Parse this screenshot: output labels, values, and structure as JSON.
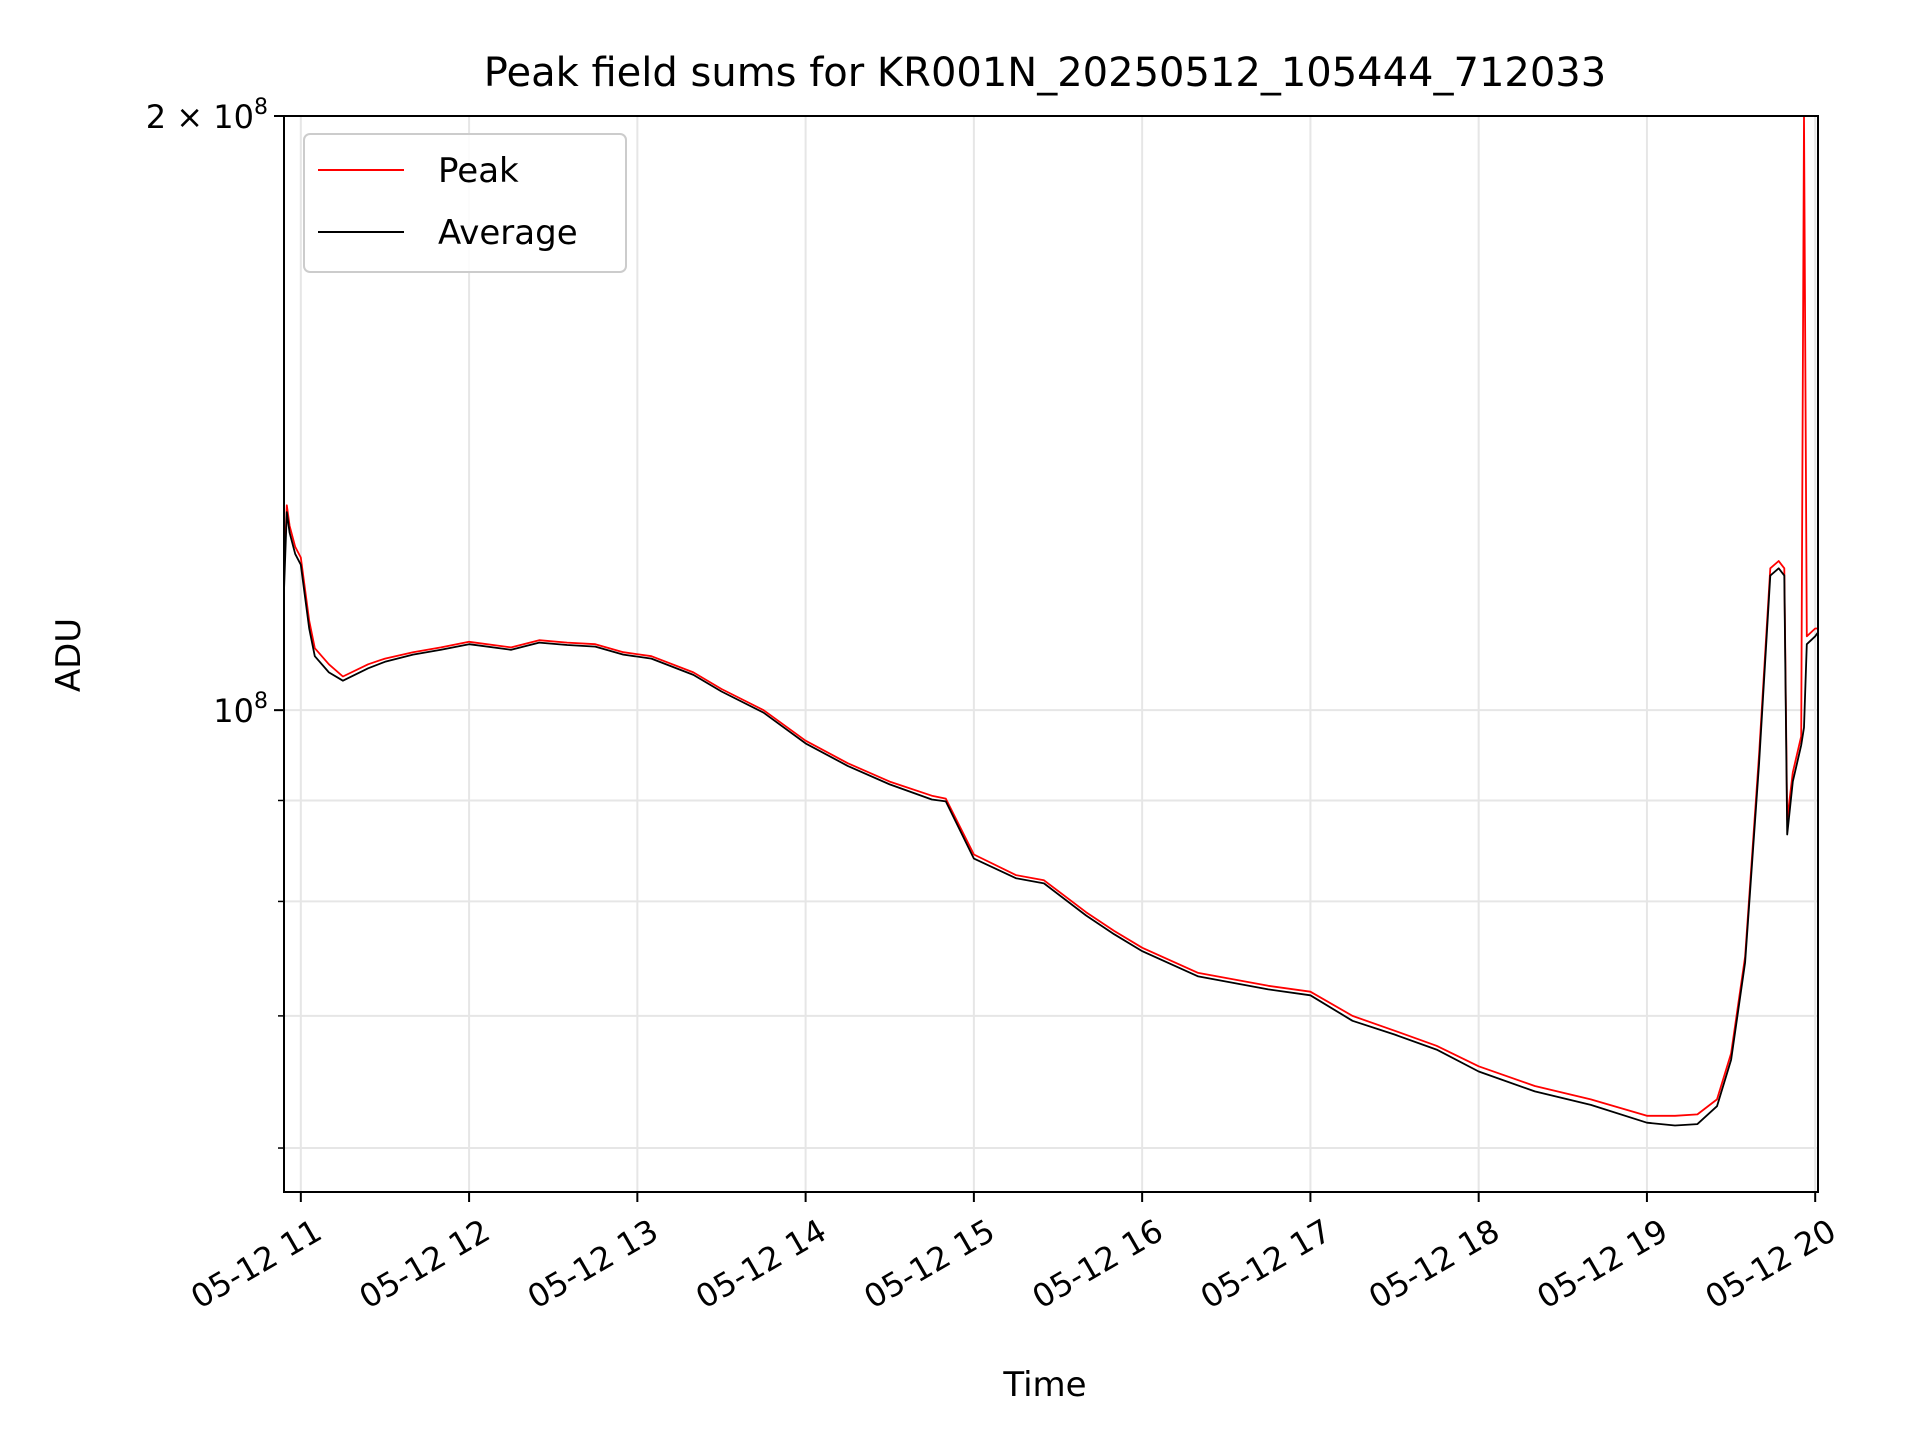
{
  "chart_data": {
    "type": "line",
    "title": "Peak field sums for KR001N_20250512_105444_712033",
    "xlabel": "Time",
    "ylabel": "ADU",
    "x_scale": "time",
    "y_scale": "log",
    "xlim": [
      "2025-05-12 10:54",
      "2025-05-12 20:01"
    ],
    "ylim": [
      57000000,
      200000000
    ],
    "grid": true,
    "legend_position": "upper-left",
    "x_tick_labels": [
      "05-12 11",
      "05-12 12",
      "05-12 13",
      "05-12 14",
      "05-12 15",
      "05-12 16",
      "05-12 17",
      "05-12 18",
      "05-12 19",
      "05-12 20"
    ],
    "y_tick_labels": [
      {
        "value": 100000000,
        "base": "10",
        "exp": "8",
        "prefix": ""
      },
      {
        "value": 200000000,
        "base": "10",
        "exp": "8",
        "prefix": "2 × "
      }
    ],
    "y_minor_ticks": [
      60000000,
      70000000,
      80000000,
      90000000
    ],
    "colors": {
      "peak": "#ff0000",
      "average": "#000000",
      "grid": "#e6e6e6"
    },
    "series": [
      {
        "name": "Peak",
        "color": "#ff0000",
        "x": [
          "2025-05-12 10:54",
          "2025-05-12 10:55",
          "2025-05-12 10:56",
          "2025-05-12 10:58",
          "2025-05-12 11:00",
          "2025-05-12 11:03",
          "2025-05-12 11:05",
          "2025-05-12 11:10",
          "2025-05-12 11:15",
          "2025-05-12 11:24",
          "2025-05-12 11:30",
          "2025-05-12 11:40",
          "2025-05-12 11:50",
          "2025-05-12 12:00",
          "2025-05-12 12:15",
          "2025-05-12 12:25",
          "2025-05-12 12:35",
          "2025-05-12 12:45",
          "2025-05-12 12:55",
          "2025-05-12 13:05",
          "2025-05-12 13:20",
          "2025-05-12 13:30",
          "2025-05-12 13:45",
          "2025-05-12 14:00",
          "2025-05-12 14:15",
          "2025-05-12 14:30",
          "2025-05-12 14:45",
          "2025-05-12 14:50",
          "2025-05-12 15:00",
          "2025-05-12 15:15",
          "2025-05-12 15:25",
          "2025-05-12 15:40",
          "2025-05-12 15:50",
          "2025-05-12 16:00",
          "2025-05-12 16:20",
          "2025-05-12 16:45",
          "2025-05-12 17:00",
          "2025-05-12 17:15",
          "2025-05-12 17:30",
          "2025-05-12 17:45",
          "2025-05-12 18:00",
          "2025-05-12 18:20",
          "2025-05-12 18:40",
          "2025-05-12 19:00",
          "2025-05-12 19:10",
          "2025-05-12 19:18",
          "2025-05-12 19:25",
          "2025-05-12 19:30",
          "2025-05-12 19:35",
          "2025-05-12 19:40",
          "2025-05-12 19:44",
          "2025-05-12 19:47",
          "2025-05-12 19:49",
          "2025-05-12 19:50",
          "2025-05-12 19:52",
          "2025-05-12 19:55",
          "2025-05-12 19:56",
          "2025-05-12 19:57",
          "2025-05-12 20:00",
          "2025-05-12 20:01"
        ],
        "values": [
          117000000,
          127000000,
          124000000,
          121000000,
          119500000,
          111000000,
          107500000,
          105500000,
          104000000,
          105500000,
          106200000,
          107000000,
          107600000,
          108300000,
          107600000,
          108500000,
          108200000,
          108000000,
          107000000,
          106500000,
          104500000,
          102500000,
          100000000,
          96500000,
          94000000,
          92000000,
          90500000,
          90200000,
          84500000,
          82500000,
          82000000,
          79000000,
          77300000,
          75800000,
          73600000,
          72500000,
          72000000,
          70000000,
          68800000,
          67600000,
          66000000,
          64500000,
          63500000,
          62300000,
          62300000,
          62400000,
          63500000,
          67000000,
          75000000,
          95000000,
          118000000,
          119000000,
          118000000,
          88000000,
          93000000,
          97000000,
          200000000,
          109000000,
          110000000,
          110000000
        ]
      },
      {
        "name": "Average",
        "color": "#000000",
        "x": [
          "2025-05-12 10:54",
          "2025-05-12 10:55",
          "2025-05-12 10:56",
          "2025-05-12 10:58",
          "2025-05-12 11:00",
          "2025-05-12 11:03",
          "2025-05-12 11:05",
          "2025-05-12 11:10",
          "2025-05-12 11:15",
          "2025-05-12 11:24",
          "2025-05-12 11:30",
          "2025-05-12 11:40",
          "2025-05-12 11:50",
          "2025-05-12 12:00",
          "2025-05-12 12:15",
          "2025-05-12 12:25",
          "2025-05-12 12:35",
          "2025-05-12 12:45",
          "2025-05-12 12:55",
          "2025-05-12 13:05",
          "2025-05-12 13:20",
          "2025-05-12 13:30",
          "2025-05-12 13:45",
          "2025-05-12 14:00",
          "2025-05-12 14:15",
          "2025-05-12 14:30",
          "2025-05-12 14:45",
          "2025-05-12 14:50",
          "2025-05-12 15:00",
          "2025-05-12 15:15",
          "2025-05-12 15:25",
          "2025-05-12 15:40",
          "2025-05-12 15:50",
          "2025-05-12 16:00",
          "2025-05-12 16:20",
          "2025-05-12 16:45",
          "2025-05-12 17:00",
          "2025-05-12 17:15",
          "2025-05-12 17:30",
          "2025-05-12 17:45",
          "2025-05-12 18:00",
          "2025-05-12 18:20",
          "2025-05-12 18:40",
          "2025-05-12 19:00",
          "2025-05-12 19:10",
          "2025-05-12 19:18",
          "2025-05-12 19:25",
          "2025-05-12 19:30",
          "2025-05-12 19:35",
          "2025-05-12 19:40",
          "2025-05-12 19:44",
          "2025-05-12 19:47",
          "2025-05-12 19:49",
          "2025-05-12 19:50",
          "2025-05-12 19:52",
          "2025-05-12 19:55",
          "2025-05-12 19:56",
          "2025-05-12 19:57",
          "2025-05-12 20:00",
          "2025-05-12 20:01"
        ],
        "values": [
          115000000,
          126000000,
          123000000,
          120000000,
          118500000,
          110000000,
          106500000,
          104500000,
          103500000,
          105000000,
          105800000,
          106700000,
          107300000,
          108000000,
          107300000,
          108200000,
          107900000,
          107700000,
          106700000,
          106200000,
          104200000,
          102200000,
          99700000,
          96200000,
          93700000,
          91700000,
          90100000,
          89900000,
          84100000,
          82200000,
          81700000,
          78700000,
          77000000,
          75500000,
          73300000,
          72200000,
          71700000,
          69600000,
          68500000,
          67300000,
          65600000,
          64100000,
          63100000,
          61800000,
          61600000,
          61700000,
          63000000,
          66500000,
          74500000,
          94000000,
          117000000,
          118000000,
          117000000,
          86500000,
          92000000,
          96000000,
          98000000,
          108000000,
          109000000,
          109500000
        ]
      }
    ]
  }
}
